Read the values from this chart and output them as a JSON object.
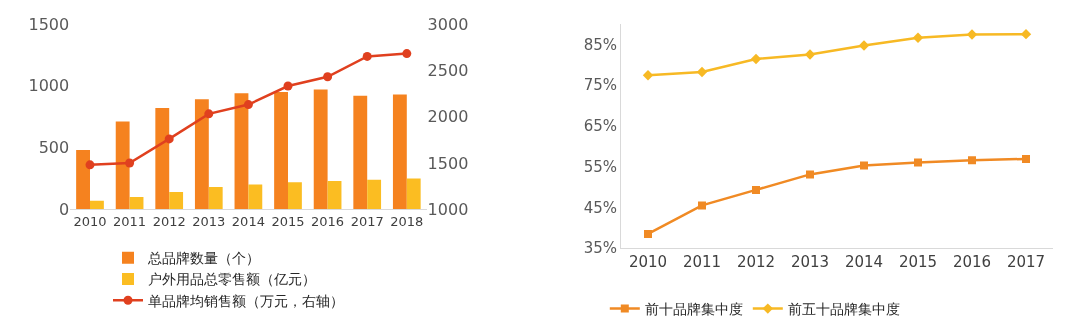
{
  "chart_data": [
    {
      "type": "bar",
      "categories": [
        "2010",
        "2011",
        "2012",
        "2013",
        "2014",
        "2015",
        "2016",
        "2017",
        "2018"
      ],
      "ylim": [
        0,
        1500
      ],
      "yticks": [
        0,
        500,
        1000,
        1500
      ],
      "y2lim": [
        1000,
        3000
      ],
      "y2ticks": [
        1000,
        1500,
        2000,
        2500,
        3000
      ],
      "legend": "bottom",
      "series": [
        {
          "name": "总品牌数量（个）",
          "color": "#f5821f",
          "values": [
            480,
            710,
            820,
            890,
            940,
            950,
            970,
            920,
            930
          ]
        },
        {
          "name": "户外用品总零售额（亿元）",
          "color": "#fbbd22",
          "values": [
            70,
            100,
            140,
            180,
            200,
            220,
            230,
            240,
            250
          ]
        },
        {
          "name": "单品牌均销售额（万元，右轴）",
          "type": "line",
          "axis": "y2",
          "marker": "circle",
          "color": "#e0401f",
          "values": [
            1480,
            1500,
            1760,
            2030,
            2130,
            2330,
            2430,
            2650,
            2680
          ]
        }
      ]
    },
    {
      "type": "line",
      "categories": [
        "2010",
        "2011",
        "2012",
        "2013",
        "2014",
        "2015",
        "2016",
        "2017"
      ],
      "ylim": [
        35,
        90
      ],
      "yticks": [
        {
          "value": 35,
          "label": "35%"
        },
        {
          "value": 45,
          "label": "45%"
        },
        {
          "value": 55,
          "label": "55%"
        },
        {
          "value": 65,
          "label": "65%"
        },
        {
          "value": 75,
          "label": "75%"
        },
        {
          "value": 85,
          "label": "85%"
        }
      ],
      "legend": "bottom",
      "series": [
        {
          "name": "前十品牌集中度",
          "color": "#f08a24",
          "marker": "square",
          "values": [
            38.5,
            45.5,
            49.3,
            53.1,
            55.3,
            56.0,
            56.6,
            56.9
          ]
        },
        {
          "name": "前五十品牌集中度",
          "color": "#f7b924",
          "marker": "diamond",
          "values": [
            77.4,
            78.2,
            81.4,
            82.5,
            84.7,
            86.6,
            87.4,
            87.5
          ]
        }
      ]
    }
  ]
}
